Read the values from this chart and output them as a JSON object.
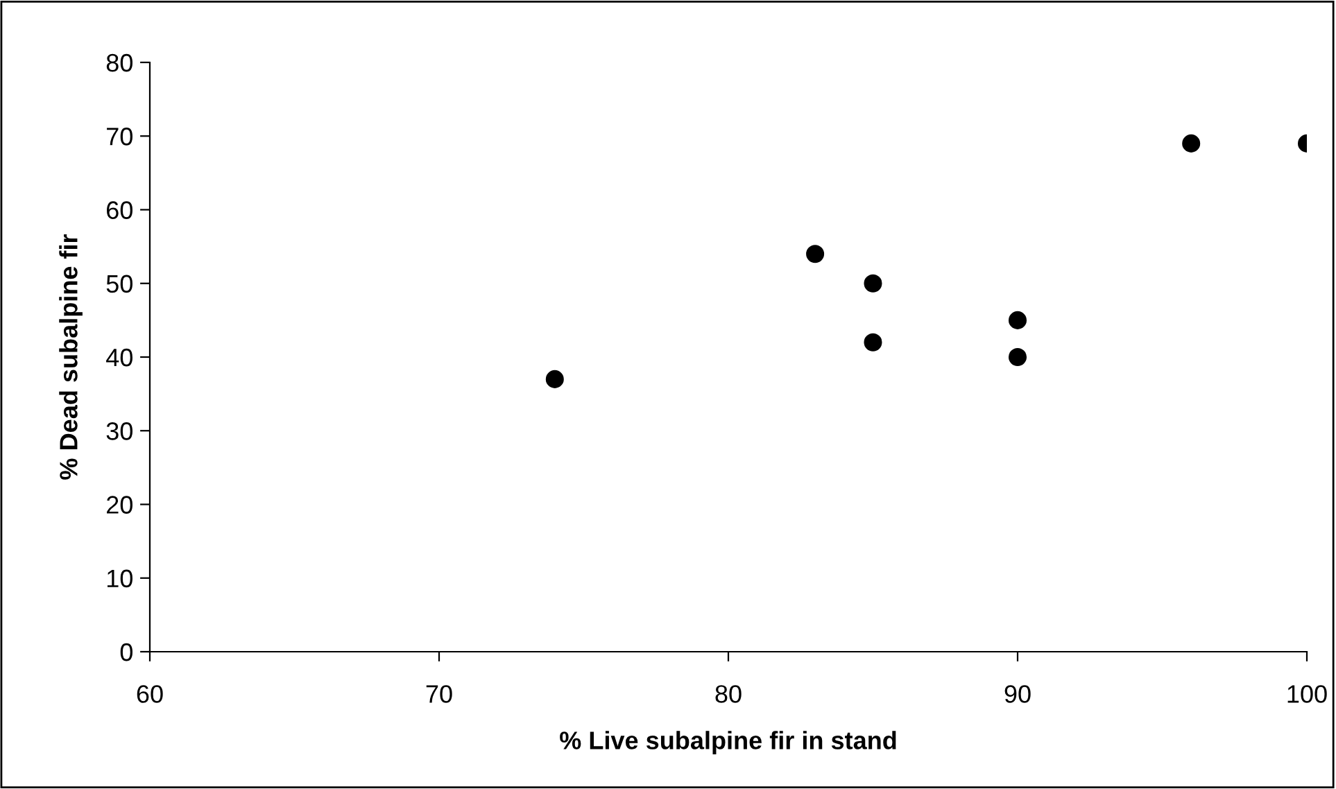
{
  "chart_data": {
    "type": "scatter",
    "xlabel": "% Live subalpine fir in stand",
    "ylabel": "% Dead subalpine fir",
    "x": [
      74,
      83,
      85,
      85,
      90,
      90,
      96,
      100
    ],
    "series": [
      {
        "color": "#000000",
        "values": [
          37,
          54,
          50,
          42,
          45,
          40,
          69,
          69
        ]
      }
    ],
    "xlim": [
      60,
      100
    ],
    "xticks": [
      60,
      70,
      80,
      90,
      100
    ],
    "ylim": [
      0,
      80
    ],
    "yticks": [
      0,
      10,
      20,
      30,
      40,
      50,
      60,
      70,
      80
    ],
    "marker": "circle",
    "grid": false,
    "legend": false
  }
}
